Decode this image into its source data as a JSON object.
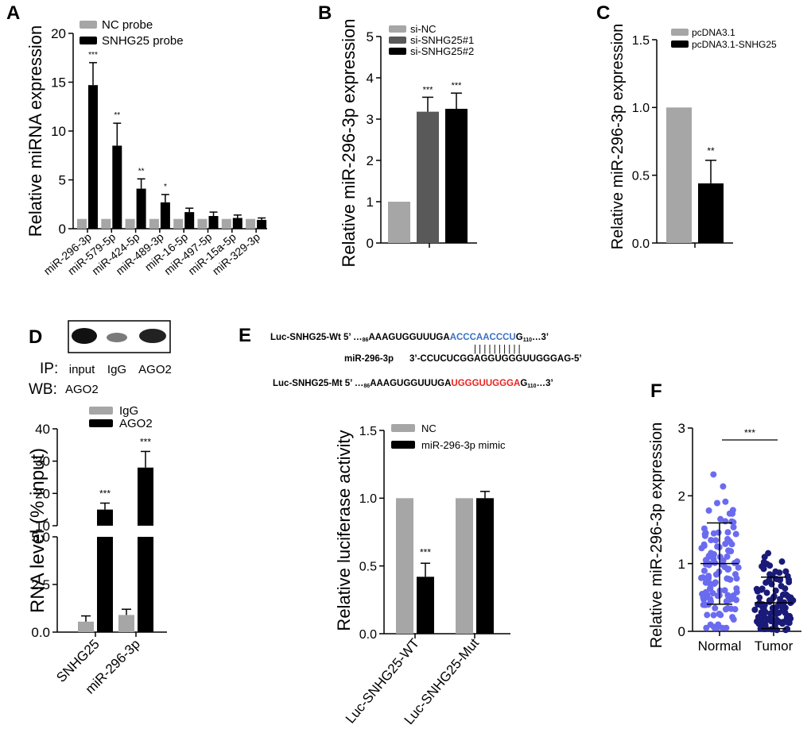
{
  "colors": {
    "gray": "#a6a6a6",
    "dark": "#595959",
    "black": "#000000",
    "normal": "#6b6bf0",
    "tumor": "#1a1a78",
    "blue_seq": "#3a6fc4",
    "red_seq": "#e8231f"
  },
  "panels": {
    "A": {
      "letter": "A",
      "ylabel": "Relative miRNA expression"
    },
    "B": {
      "letter": "B",
      "ylabel": "Relative miR-296-3p expression"
    },
    "C": {
      "letter": "C",
      "ylabel": "Relative miR-296-3p expression"
    },
    "D": {
      "letter": "D",
      "ylabel": "RNA level (% input)",
      "ip_label": "IP:",
      "wb_label": "WB:",
      "wb_value": "AGO2",
      "lanes": [
        "input",
        "IgG",
        "AGO2"
      ]
    },
    "E": {
      "letter": "E",
      "ylabel": "Relative luciferase activity",
      "seq_wt_label": "Luc-SNHG25-Wt 5’ …",
      "seq_wt_num1": "86",
      "seq_wt_pre": "AAAGUGGUUUGA",
      "seq_wt_hl": "ACCCAACCCU",
      "seq_wt_post": "G",
      "seq_wt_num2": "110",
      "seq_wt_end": "…3’",
      "pairs": "| | | | | | | | | |",
      "mir_label": "miR-296-3p",
      "mir_seq": "3’-CCUCUCGGAGGUGGGUUGGGAG-5’",
      "seq_mt_label": "Luc-SNHG25-Mt 5’ …",
      "seq_mt_num1": "86",
      "seq_mt_pre": "AAAGUGGUUUGA",
      "seq_mt_hl": "UGGGUUGGGA",
      "seq_mt_post": "G",
      "seq_mt_num2": "110",
      "seq_mt_end": "…3’"
    },
    "F": {
      "letter": "F",
      "ylabel": "Relative miR-296-3p expression"
    }
  },
  "chart_data": [
    {
      "id": "A",
      "type": "bar",
      "ylabel": "Relative miRNA expression",
      "ylim": [
        0,
        20
      ],
      "yticks": [
        "0",
        "5",
        "10",
        "15",
        "20"
      ],
      "categories": [
        "miR-296-3p",
        "miR-579-5p",
        "miR-424-5p",
        "miR-489-3p",
        "miR-16-5p",
        "miR-497-5p",
        "miR-15a-5p",
        "miR-329-3p"
      ],
      "series": [
        {
          "name": "NC probe",
          "color": "gray",
          "values": [
            1.0,
            1.0,
            1.0,
            1.0,
            1.0,
            1.0,
            1.0,
            1.0
          ],
          "errors": [
            0.0,
            0.0,
            0.0,
            0.0,
            0.0,
            0.0,
            0.0,
            0.0
          ]
        },
        {
          "name": "SNHG25 probe",
          "color": "black",
          "values": [
            14.7,
            8.5,
            4.1,
            2.7,
            1.7,
            1.3,
            1.1,
            0.9
          ],
          "errors": [
            2.3,
            2.3,
            1.0,
            0.8,
            0.4,
            0.4,
            0.3,
            0.2
          ]
        }
      ],
      "significance": [
        "***",
        "**",
        "**",
        "*",
        "",
        "",
        "",
        ""
      ],
      "legend": "top-left"
    },
    {
      "id": "B",
      "type": "bar",
      "ylabel": "Relative miR-296-3p expression",
      "ylim": [
        0,
        5
      ],
      "yticks": [
        "0",
        "1",
        "2",
        "3",
        "4",
        "5"
      ],
      "categories": [
        "si-NC",
        "si-SNHG25#1",
        "si-SNHG25#2"
      ],
      "series": [
        {
          "name": "si-NC",
          "color": "gray",
          "value": 1.0,
          "error": 0.0
        },
        {
          "name": "si-SNHG25#1",
          "color": "dark",
          "value": 3.18,
          "error": 0.35
        },
        {
          "name": "si-SNHG25#2",
          "color": "black",
          "value": 3.25,
          "error": 0.38
        }
      ],
      "significance": [
        "",
        "***",
        "***"
      ],
      "legend": "top-left"
    },
    {
      "id": "C",
      "type": "bar",
      "ylabel": "Relative miR-296-3p expression",
      "ylim": [
        0,
        1.5
      ],
      "yticks": [
        "0.0",
        "0.5",
        "1.0",
        "1.5"
      ],
      "categories": [
        "pcDNA3.1",
        "pcDNA3.1-SNHG25"
      ],
      "series": [
        {
          "name": "pcDNA3.1",
          "color": "gray",
          "value": 1.0,
          "error": 0.0
        },
        {
          "name": "pcDNA3.1-SNHG25",
          "color": "black",
          "value": 0.44,
          "error": 0.17
        }
      ],
      "significance": [
        "",
        "**"
      ],
      "legend": "top-left"
    },
    {
      "id": "D",
      "type": "bar",
      "ylabel": "RNA level (% input)",
      "axis_break": true,
      "yticks_lower": [
        "0.0",
        "2.5",
        "5.0"
      ],
      "yticks_upper": [
        "10",
        "20",
        "30",
        "40"
      ],
      "categories": [
        "SNHG25",
        "miR-296-3p"
      ],
      "series": [
        {
          "name": "IgG",
          "color": "gray",
          "values": [
            0.55,
            0.9
          ],
          "errors": [
            0.3,
            0.3
          ]
        },
        {
          "name": "AGO2",
          "color": "black",
          "values": [
            15.0,
            28.0
          ],
          "errors": [
            2.0,
            5.0
          ]
        }
      ],
      "significance": [
        "***",
        "***"
      ],
      "legend": "top-left"
    },
    {
      "id": "E",
      "type": "bar",
      "ylabel": "Relative luciferase activity",
      "ylim": [
        0,
        1.5
      ],
      "yticks": [
        "0.0",
        "0.5",
        "1.0",
        "1.5"
      ],
      "categories": [
        "Luc-SNHG25-WT",
        "Luc-SNHG25-Mut"
      ],
      "series": [
        {
          "name": "NC",
          "color": "gray",
          "values": [
            1.0,
            1.0
          ],
          "errors": [
            0.0,
            0.0
          ]
        },
        {
          "name": "miR-296-3p mimic",
          "color": "black",
          "values": [
            0.42,
            1.0
          ],
          "errors": [
            0.1,
            0.05
          ]
        }
      ],
      "significance": [
        "***",
        ""
      ],
      "legend": "top-left"
    },
    {
      "id": "F",
      "type": "scatter",
      "ylabel": "Relative miR-296-3p expression",
      "ylim": [
        0,
        3
      ],
      "yticks": [
        "0",
        "1",
        "2",
        "3"
      ],
      "categories": [
        "Normal",
        "Tumor"
      ],
      "groups": [
        {
          "name": "Normal",
          "color": "normal",
          "mean": 1.0,
          "sd": 0.6
        },
        {
          "name": "Tumor",
          "color": "tumor",
          "mean": 0.42,
          "sd": 0.38
        }
      ],
      "significance": "***"
    }
  ]
}
